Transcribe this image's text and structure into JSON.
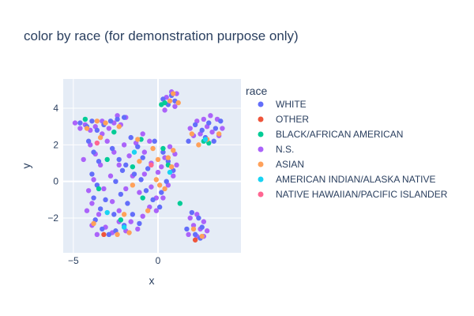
{
  "chart_data": {
    "type": "scatter",
    "title": "color by race (for demonstration purpose only)",
    "xlabel": "x",
    "ylabel": "y",
    "xlim": [
      -5.6,
      4.9
    ],
    "ylim": [
      -3.9,
      5.6
    ],
    "x_ticks": [
      -5,
      0
    ],
    "y_ticks": [
      -2,
      0,
      2,
      4
    ],
    "grid": true,
    "legend_title": "race",
    "legend_position": "right",
    "series": [
      {
        "name": "WHITE",
        "color": "#636efa",
        "points": [
          [
            -4.6,
            3.2
          ],
          [
            -4.2,
            3.0
          ],
          [
            -3.9,
            3.3
          ],
          [
            -3.6,
            2.8
          ],
          [
            -3.2,
            3.1
          ],
          [
            -2.8,
            3.3
          ],
          [
            -2.4,
            3.4
          ],
          [
            -2.0,
            3.5
          ],
          [
            -4.1,
            2.2
          ],
          [
            -3.8,
            1.6
          ],
          [
            -3.5,
            1.1
          ],
          [
            -3.9,
            0.4
          ],
          [
            -3.6,
            -0.2
          ],
          [
            -3.8,
            -0.9
          ],
          [
            -3.4,
            -1.5
          ],
          [
            -3.7,
            -2.1
          ],
          [
            -3.3,
            -2.6
          ],
          [
            -2.9,
            -2.9
          ],
          [
            -2.5,
            -2.7
          ],
          [
            -2.0,
            -2.4
          ],
          [
            -2.7,
            1.8
          ],
          [
            -2.3,
            1.2
          ],
          [
            -2.1,
            0.6
          ],
          [
            -2.5,
            0.0
          ],
          [
            -2.2,
            -0.7
          ],
          [
            -1.8,
            -1.2
          ],
          [
            -1.5,
            -1.8
          ],
          [
            -1.1,
            -2.3
          ],
          [
            -1.6,
            2.4
          ],
          [
            -1.2,
            1.9
          ],
          [
            -0.9,
            1.3
          ],
          [
            -0.6,
            0.7
          ],
          [
            -1.0,
            0.1
          ],
          [
            -0.7,
            -0.5
          ],
          [
            -0.3,
            -1.0
          ],
          [
            0.1,
            -1.4
          ],
          [
            -0.2,
            2.2
          ],
          [
            0.3,
            1.6
          ],
          [
            0.6,
            1.1
          ],
          [
            0.9,
            0.6
          ],
          [
            0.5,
            0.0
          ],
          [
            0.2,
            -0.6
          ],
          [
            0.8,
            4.7
          ],
          [
            1.0,
            4.4
          ],
          [
            0.6,
            4.2
          ],
          [
            0.3,
            4.5
          ],
          [
            2.2,
            3.1
          ],
          [
            2.6,
            2.8
          ],
          [
            3.0,
            3.2
          ],
          [
            3.4,
            2.9
          ],
          [
            3.7,
            3.3
          ],
          [
            2.8,
            2.4
          ],
          [
            3.3,
            2.2
          ],
          [
            1.8,
            2.2
          ],
          [
            2.4,
            -2.0
          ],
          [
            2.6,
            -2.5
          ],
          [
            2.2,
            -2.9
          ],
          [
            2.0,
            -1.7
          ],
          [
            2.5,
            -3.1
          ],
          [
            1.7,
            -2.6
          ],
          [
            -3.1,
            -1.0
          ],
          [
            -2.6,
            -1.8
          ],
          [
            -1.4,
            0.4
          ],
          [
            -1.9,
            0.9
          ]
        ]
      },
      {
        "name": "OTHER",
        "color": "#EF553B",
        "points": [
          [
            -3.2,
            -2.9
          ],
          [
            2.2,
            -3.2
          ]
        ]
      },
      {
        "name": "BLACK/AFRICAN AMERICAN",
        "color": "#00cc96",
        "points": [
          [
            -4.3,
            3.4
          ],
          [
            -3.0,
            1.2
          ],
          [
            -2.2,
            -2.1
          ],
          [
            -1.5,
            0.8
          ],
          [
            -0.9,
            -0.9
          ],
          [
            0.2,
            4.2
          ],
          [
            0.4,
            4.3
          ],
          [
            1.3,
            -1.2
          ],
          [
            2.7,
            2.2
          ],
          [
            3.0,
            2.1
          ],
          [
            -1.0,
            2.3
          ],
          [
            0.3,
            1.8
          ],
          [
            -3.5,
            -0.4
          ],
          [
            0.6,
            0.9
          ],
          [
            -2.6,
            2.7
          ]
        ]
      },
      {
        "name": "N.S.",
        "color": "#ab63fa",
        "points": [
          [
            -4.9,
            3.2
          ],
          [
            -4.6,
            2.9
          ],
          [
            -4.3,
            3.1
          ],
          [
            -4.0,
            2.8
          ],
          [
            -3.7,
            3.0
          ],
          [
            -3.3,
            2.6
          ],
          [
            -2.9,
            2.9
          ],
          [
            -2.6,
            3.2
          ],
          [
            -2.2,
            3.1
          ],
          [
            -1.9,
            3.5
          ],
          [
            -2.4,
            3.6
          ],
          [
            -4.0,
            2.0
          ],
          [
            -3.7,
            1.5
          ],
          [
            -3.4,
            0.9
          ],
          [
            -3.8,
            0.1
          ],
          [
            -4.1,
            -0.5
          ],
          [
            -3.9,
            -1.2
          ],
          [
            -3.5,
            -1.8
          ],
          [
            -3.9,
            -2.4
          ],
          [
            -3.6,
            -2.9
          ],
          [
            -3.1,
            -2.5
          ],
          [
            -2.7,
            -2.8
          ],
          [
            -2.3,
            -2.2
          ],
          [
            -1.9,
            -2.7
          ],
          [
            -1.6,
            -2.2
          ],
          [
            -1.2,
            -2.6
          ],
          [
            -3.0,
            2.2
          ],
          [
            -2.6,
            1.6
          ],
          [
            -2.3,
            0.9
          ],
          [
            -2.8,
            0.3
          ],
          [
            -3.2,
            -0.4
          ],
          [
            -2.7,
            -1.1
          ],
          [
            -2.3,
            -1.6
          ],
          [
            -1.9,
            -0.4
          ],
          [
            -1.5,
            0.3
          ],
          [
            -1.7,
            1.4
          ],
          [
            -1.3,
            2.1
          ],
          [
            -0.9,
            2.6
          ],
          [
            -0.5,
            2.2
          ],
          [
            -0.8,
            1.6
          ],
          [
            -0.4,
            1.0
          ],
          [
            -0.8,
            0.4
          ],
          [
            -0.4,
            -0.3
          ],
          [
            -0.1,
            -0.9
          ],
          [
            -0.5,
            -1.4
          ],
          [
            -0.9,
            -1.9
          ],
          [
            0.0,
            0.5
          ],
          [
            0.4,
            1.3
          ],
          [
            0.7,
            1.9
          ],
          [
            1.0,
            1.5
          ],
          [
            0.9,
            0.3
          ],
          [
            1.1,
            0.9
          ],
          [
            0.6,
            -0.2
          ],
          [
            0.3,
            -0.9
          ],
          [
            -0.1,
            -1.6
          ],
          [
            0.5,
            4.6
          ],
          [
            0.8,
            4.9
          ],
          [
            1.1,
            4.8
          ],
          [
            1.0,
            4.1
          ],
          [
            0.4,
            3.9
          ],
          [
            1.9,
            2.9
          ],
          [
            2.3,
            3.3
          ],
          [
            2.7,
            3.4
          ],
          [
            3.1,
            3.6
          ],
          [
            3.5,
            3.4
          ],
          [
            3.8,
            2.9
          ],
          [
            3.6,
            2.5
          ],
          [
            3.2,
            2.7
          ],
          [
            2.9,
            3.0
          ],
          [
            2.5,
            2.6
          ],
          [
            2.1,
            2.5
          ],
          [
            1.9,
            -2.0
          ],
          [
            2.3,
            -1.8
          ],
          [
            2.7,
            -2.2
          ],
          [
            2.9,
            -2.7
          ],
          [
            2.5,
            -2.6
          ],
          [
            2.1,
            -2.4
          ],
          [
            1.8,
            -2.9
          ],
          [
            2.3,
            -3.0
          ],
          [
            2.7,
            -3.0
          ],
          [
            -4.4,
            1.2
          ],
          [
            -4.2,
            -1.6
          ],
          [
            -2.0,
            2.0
          ],
          [
            -1.1,
            -0.6
          ],
          [
            0.2,
            0.8
          ],
          [
            -3.3,
            3.3
          ]
        ]
      },
      {
        "name": "ASIAN",
        "color": "#FFA15A",
        "points": [
          [
            -4.2,
            2.9
          ],
          [
            -3.6,
            3.3
          ],
          [
            -3.1,
            3.2
          ],
          [
            -2.3,
            3.0
          ],
          [
            -3.4,
            2.4
          ],
          [
            -1.2,
            2.3
          ],
          [
            -0.3,
            1.8
          ],
          [
            0.0,
            1.2
          ],
          [
            0.6,
            1.3
          ],
          [
            0.8,
            0.8
          ],
          [
            -0.1,
            0.1
          ],
          [
            0.4,
            -0.4
          ],
          [
            -1.5,
            -0.2
          ],
          [
            -2.0,
            -1.8
          ],
          [
            -2.4,
            -2.9
          ],
          [
            -1.7,
            -2.8
          ],
          [
            -1.1,
            1.1
          ],
          [
            0.9,
            4.8
          ],
          [
            0.7,
            4.4
          ],
          [
            1.2,
            4.3
          ],
          [
            2.0,
            2.6
          ],
          [
            2.4,
            2.0
          ],
          [
            2.9,
            2.3
          ],
          [
            3.6,
            2.6
          ],
          [
            2.6,
            -3.0
          ],
          [
            2.1,
            -2.6
          ],
          [
            -0.6,
            -1.6
          ],
          [
            0.1,
            -0.2
          ],
          [
            -3.8,
            -2.3
          ],
          [
            0.9,
            1.7
          ]
        ]
      },
      {
        "name": "AMERICAN INDIAN/ALASKA NATIVE",
        "color": "#19d3f3",
        "points": [
          [
            -3.0,
            -1.7
          ],
          [
            -1.4,
            1.6
          ],
          [
            0.7,
            0.5
          ],
          [
            2.8,
            2.3
          ],
          [
            -2.0,
            -2.5
          ]
        ]
      },
      {
        "name": "NATIVE HAWAIIAN/PACIFIC ISLANDER",
        "color": "#FF6692",
        "points": [
          [
            -0.4,
            0.9
          ],
          [
            -3.6,
            2.1
          ]
        ]
      }
    ]
  }
}
